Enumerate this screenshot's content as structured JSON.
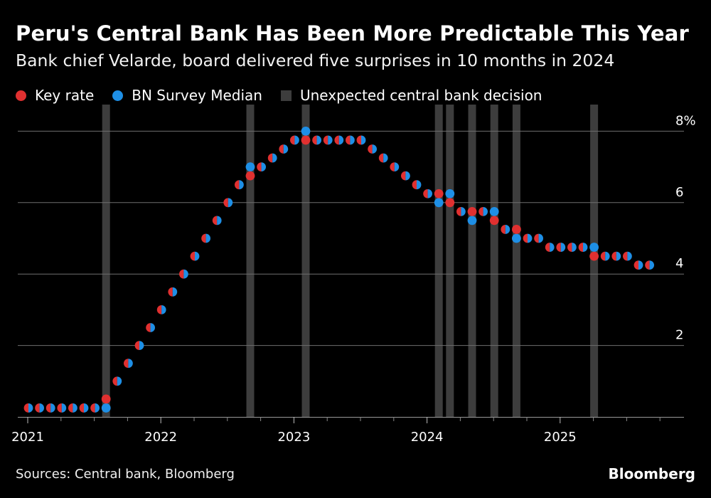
{
  "header": {
    "title": "Peru's Central Bank Has Been More Predictable This Year",
    "subtitle": "Bank chief Velarde, board delivered five surprises in 10 months in 2024"
  },
  "legend": {
    "key_rate": "Key rate",
    "survey": "BN Survey Median",
    "surprise": "Unexpected central bank decision"
  },
  "colors": {
    "key_rate": "#e03030",
    "survey": "#1e8fe6",
    "surprise": "#3d3d3d",
    "grid": "#6e6e6e"
  },
  "footer": {
    "source": "Sources: Central bank, Bloomberg",
    "brand": "Bloomberg"
  },
  "chart_data": {
    "type": "scatter",
    "title": "Peru's Central Bank Has Been More Predictable This Year",
    "subtitle": "Bank chief Velarde, board delivered five surprises in 10 months in 2024",
    "xlabel": "",
    "ylabel": "",
    "ylim": [
      0,
      8
    ],
    "yticks": [
      2,
      4,
      6,
      8
    ],
    "ytick_labels": [
      "2",
      "4",
      "6",
      "8%"
    ],
    "xticks": [
      2021,
      2022,
      2023,
      2024,
      2025
    ],
    "xtick_labels": [
      "2021",
      "2022",
      "2023",
      "2024",
      "2025"
    ],
    "x_unit": "decision index (monthly meetings, index 0 = Jan 2021)",
    "x_index": [
      0,
      1,
      2,
      3,
      4,
      5,
      6,
      7,
      8,
      9,
      10,
      11,
      12,
      13,
      14,
      15,
      16,
      17,
      18,
      19,
      20,
      21,
      22,
      23,
      24,
      25,
      26,
      27,
      28,
      29,
      30,
      31,
      32,
      33,
      34,
      35,
      36,
      37,
      38,
      39,
      40,
      41,
      42,
      43,
      44,
      45,
      46,
      47,
      48,
      49,
      50,
      51,
      52,
      53,
      54,
      55,
      56
    ],
    "series": [
      {
        "name": "Key rate",
        "values": [
          0.25,
          0.25,
          0.25,
          0.25,
          0.25,
          0.25,
          0.25,
          0.5,
          1.0,
          1.5,
          2.0,
          2.5,
          3.0,
          3.5,
          4.0,
          4.5,
          5.0,
          5.5,
          6.0,
          6.5,
          6.75,
          7.0,
          7.25,
          7.5,
          7.75,
          7.75,
          7.75,
          7.75,
          7.75,
          7.75,
          7.75,
          7.5,
          7.25,
          7.0,
          6.75,
          6.5,
          6.25,
          6.25,
          6.0,
          5.75,
          5.75,
          5.75,
          5.5,
          5.25,
          5.25,
          5.0,
          5.0,
          4.75,
          4.75,
          4.75,
          4.75,
          4.5,
          4.5,
          4.5,
          4.5,
          4.25,
          4.25
        ]
      },
      {
        "name": "BN Survey Median",
        "values": [
          0.25,
          0.25,
          0.25,
          0.25,
          0.25,
          0.25,
          0.25,
          0.25,
          1.0,
          1.5,
          2.0,
          2.5,
          3.0,
          3.5,
          4.0,
          4.5,
          5.0,
          5.5,
          6.0,
          6.5,
          7.0,
          7.0,
          7.25,
          7.5,
          7.75,
          8.0,
          7.75,
          7.75,
          7.75,
          7.75,
          7.75,
          7.5,
          7.25,
          7.0,
          6.75,
          6.5,
          6.25,
          6.0,
          6.25,
          5.75,
          5.5,
          5.75,
          5.75,
          5.25,
          5.0,
          5.0,
          5.0,
          4.75,
          4.75,
          4.75,
          4.75,
          4.75,
          4.5,
          4.5,
          4.5,
          4.25,
          4.25
        ]
      }
    ],
    "unexpected_decisions": [
      7,
      20,
      25,
      37,
      38,
      40,
      42,
      44,
      51
    ]
  }
}
